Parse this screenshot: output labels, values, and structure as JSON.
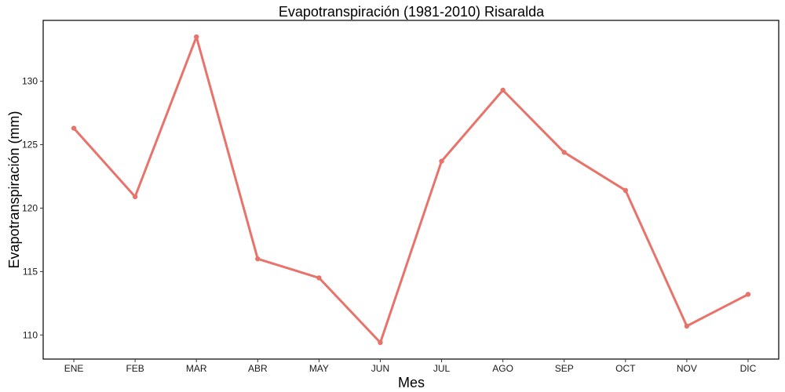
{
  "chart_data": {
    "type": "line",
    "title": "Evapotranspiración (1981-2010)  Risaralda",
    "xlabel": "Mes",
    "ylabel": "Evapotranspiración (mm)",
    "categories": [
      "ENE",
      "FEB",
      "MAR",
      "ABR",
      "MAY",
      "JUN",
      "JUL",
      "AGO",
      "SEP",
      "OCT",
      "NOV",
      "DIC"
    ],
    "series": [
      {
        "values": [
          126.3,
          120.9,
          133.5,
          116.0,
          114.5,
          109.4,
          123.7,
          129.3,
          124.4,
          121.4,
          110.7,
          113.2
        ]
      }
    ],
    "ylim": [
      108.1,
      134.8
    ],
    "yticks": [
      110,
      115,
      120,
      125,
      130
    ],
    "grid": false,
    "legend": "none",
    "line_color": "#E8736B"
  }
}
